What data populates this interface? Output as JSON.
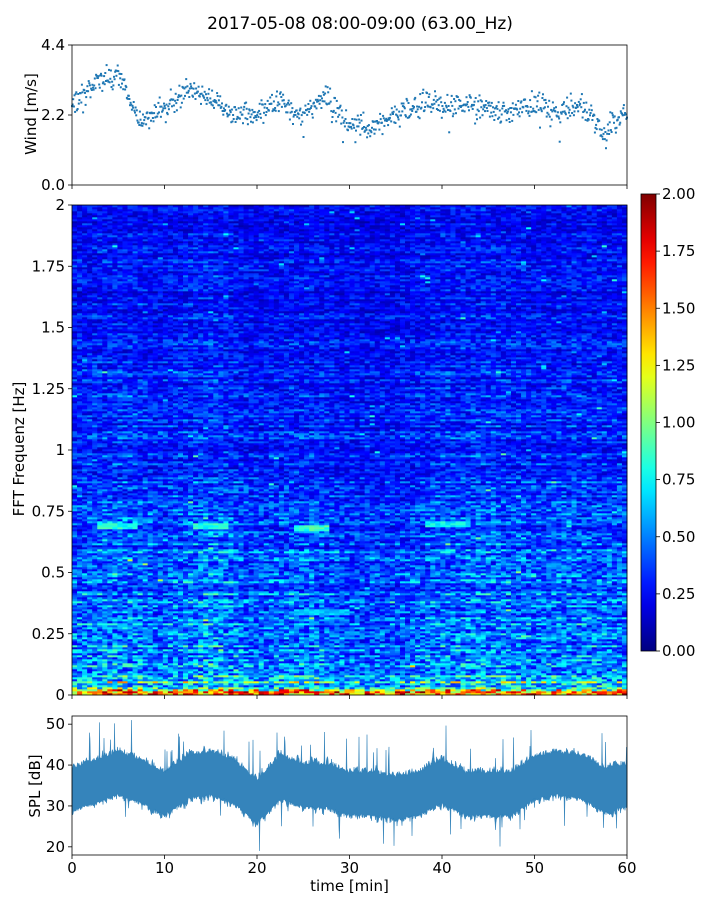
{
  "title": "2017-05-08 08:00-09:00 (63.00_Hz)",
  "chart_data": [
    {
      "panel": "wind",
      "type": "scatter",
      "title": "2017-05-08 08:00-09:00 (63.00_Hz)",
      "ylabel": "Wind [m/s]",
      "ylim": [
        0,
        4.4
      ],
      "yticks": [
        "0.0",
        "2.2",
        "4.4"
      ],
      "xlim": [
        0,
        60
      ],
      "series": [
        {
          "color": "#1f77b4",
          "x": [
            0,
            2.5,
            5,
            7.5,
            10,
            12.5,
            15,
            17.5,
            20,
            22.5,
            25,
            27.5,
            30,
            32.5,
            35,
            37.5,
            40,
            42.5,
            45,
            47.5,
            50,
            52.5,
            55,
            57.5,
            60
          ],
          "y": [
            2.6,
            3.2,
            3.5,
            2.0,
            2.4,
            3.1,
            2.7,
            2.2,
            2.3,
            2.6,
            2.2,
            2.8,
            1.9,
            1.8,
            2.2,
            2.6,
            2.5,
            2.6,
            2.5,
            2.3,
            2.5,
            2.3,
            2.6,
            1.7,
            2.3
          ]
        }
      ]
    },
    {
      "panel": "spectrogram",
      "type": "heatmap",
      "ylabel": "FFT Frequenz [Hz]",
      "ylim": [
        0,
        2
      ],
      "yticks": [
        "0",
        "0.25",
        "0.5",
        "0.75",
        "1",
        "1.25",
        "1.5",
        "1.75",
        "2"
      ],
      "xlim": [
        0,
        60
      ],
      "colormap": "jet",
      "colorbar": {
        "range": [
          0.0,
          2.0
        ],
        "ticks": [
          "0.00",
          "0.25",
          "0.50",
          "0.75",
          "1.00",
          "1.25",
          "1.50",
          "1.75",
          "2.00"
        ]
      },
      "frequency_profile": {
        "freq_hz": [
          0,
          0.02,
          0.05,
          0.1,
          0.2,
          0.35,
          0.5,
          0.7,
          1.0,
          1.5,
          2.0
        ],
        "mean_value": [
          1.6,
          0.9,
          0.7,
          0.55,
          0.45,
          0.42,
          0.4,
          0.38,
          0.3,
          0.25,
          0.22
        ]
      },
      "time_profile": {
        "x": [
          0,
          5,
          10,
          15,
          20,
          25,
          30,
          35,
          40,
          45,
          50,
          55,
          60
        ],
        "factor": [
          1.0,
          1.1,
          1.0,
          1.15,
          0.95,
          1.05,
          0.9,
          0.9,
          1.05,
          1.1,
          1.0,
          1.05,
          1.0
        ]
      },
      "features": [
        {
          "freq_hz": 0.69,
          "from_min": 3,
          "to_min": 7,
          "value": 0.8
        },
        {
          "freq_hz": 0.69,
          "from_min": 13,
          "to_min": 17,
          "value": 0.8
        },
        {
          "freq_hz": 0.68,
          "from_min": 24,
          "to_min": 28,
          "value": 0.85
        },
        {
          "freq_hz": 0.7,
          "from_min": 38,
          "to_min": 43,
          "value": 0.75
        },
        {
          "freq_hz": 0.34,
          "from_min": 24,
          "to_min": 30,
          "value": 0.65
        }
      ]
    },
    {
      "panel": "spl",
      "type": "area",
      "ylabel": "SPL [dB]",
      "xlabel": "time [min]",
      "xlim": [
        0,
        60
      ],
      "xticks": [
        "0",
        "10",
        "20",
        "30",
        "40",
        "50",
        "60"
      ],
      "ylim": [
        18,
        52
      ],
      "yticks": [
        "20",
        "30",
        "40",
        "50"
      ],
      "series": [
        {
          "color": "#1f77b4",
          "x": [
            0,
            2.5,
            5,
            7.5,
            10,
            12.5,
            15,
            17.5,
            20,
            22.5,
            25,
            27.5,
            30,
            32.5,
            35,
            37.5,
            40,
            42.5,
            45,
            47.5,
            50,
            52.5,
            55,
            57.5,
            60
          ],
          "y": [
            34,
            36,
            38,
            36,
            33,
            37,
            38,
            36,
            31,
            37,
            35,
            35,
            33,
            33,
            32,
            33,
            36,
            33,
            33,
            33,
            37,
            38,
            37,
            34,
            35
          ]
        }
      ]
    }
  ]
}
